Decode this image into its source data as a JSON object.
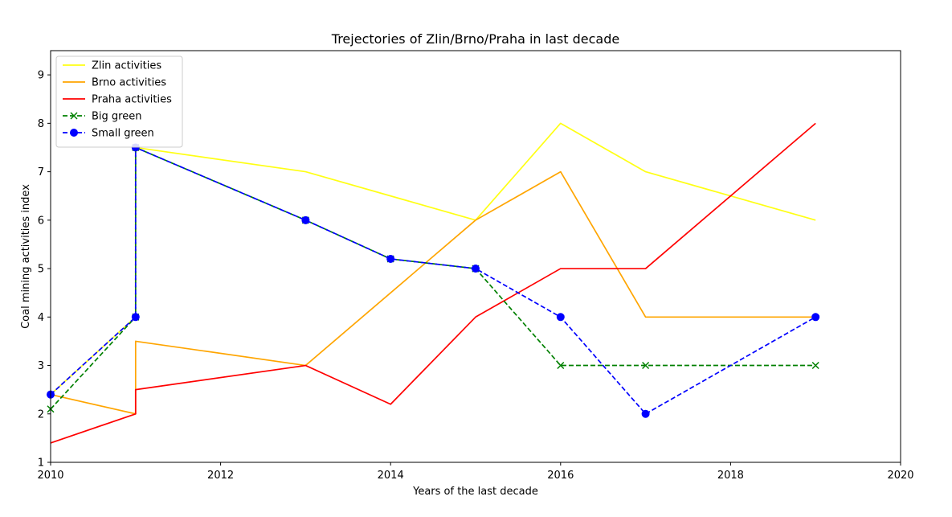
{
  "chart_data": {
    "type": "line",
    "title": "Trejectories of Zlin/Brno/Praha in last decade",
    "xlabel": "Years of the last decade",
    "ylabel": "Coal mining activities index",
    "xlim": [
      2010,
      2020
    ],
    "ylim": [
      1,
      9.5
    ],
    "xticks": [
      2010,
      2012,
      2014,
      2016,
      2018,
      2020
    ],
    "yticks": [
      1,
      2,
      3,
      4,
      5,
      6,
      7,
      8,
      9
    ],
    "grid": false,
    "legend_position": "top-left",
    "series": [
      {
        "name": "Zlin activities",
        "color": "#ffff14",
        "linestyle": "solid",
        "marker": "none",
        "x": [
          2010,
          2011,
          2011,
          2013,
          2015,
          2016,
          2017,
          2019
        ],
        "y": [
          2.4,
          4.0,
          7.5,
          7.0,
          6.0,
          8.0,
          7.0,
          6.0
        ]
      },
      {
        "name": "Brno activities",
        "color": "#ffa500",
        "linestyle": "solid",
        "marker": "none",
        "x": [
          2010,
          2011,
          2011,
          2013,
          2015,
          2016,
          2017,
          2019
        ],
        "y": [
          2.4,
          2.0,
          3.5,
          3.0,
          6.0,
          7.0,
          4.0,
          4.0
        ]
      },
      {
        "name": "Praha activities",
        "color": "#ff0000",
        "linestyle": "solid",
        "marker": "none",
        "x": [
          2010,
          2011,
          2011,
          2013,
          2014,
          2015,
          2016,
          2017,
          2019
        ],
        "y": [
          1.4,
          2.0,
          2.5,
          3.0,
          2.2,
          4.0,
          5.0,
          5.0,
          8.0
        ]
      },
      {
        "name": "Big green",
        "color": "#008000",
        "linestyle": "dashed",
        "marker": "x",
        "x": [
          2010,
          2011,
          2011,
          2013,
          2014,
          2015,
          2016,
          2017,
          2019
        ],
        "y": [
          2.1,
          4.0,
          7.5,
          6.0,
          5.2,
          5.0,
          3.0,
          3.0,
          3.0
        ]
      },
      {
        "name": "Small green",
        "color": "#0000ff",
        "linestyle": "dashed",
        "marker": "circle",
        "x": [
          2010,
          2011,
          2011,
          2013,
          2014,
          2015,
          2016,
          2017,
          2019
        ],
        "y": [
          2.4,
          4.0,
          7.5,
          6.0,
          5.2,
          5.0,
          4.0,
          2.0,
          4.0
        ]
      }
    ]
  }
}
